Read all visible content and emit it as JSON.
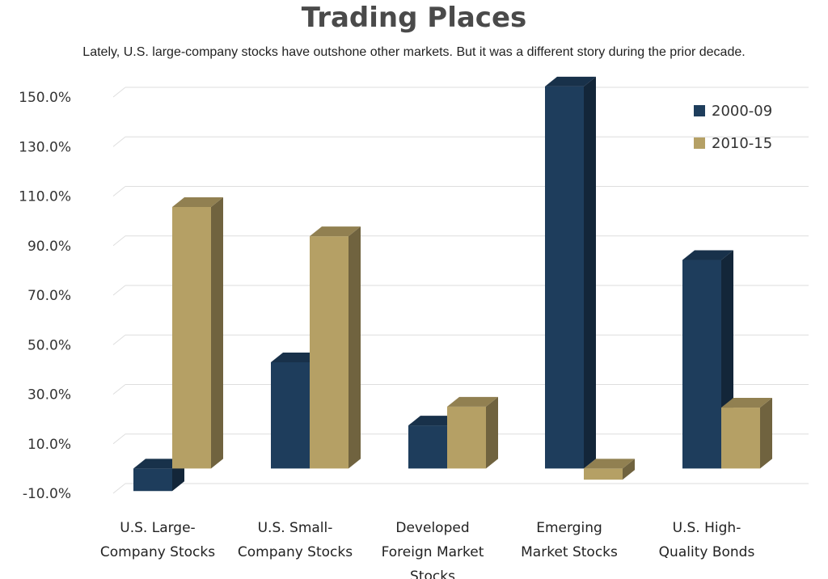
{
  "chart_data": {
    "type": "bar",
    "title": "Trading Places",
    "subtitle": "Lately, U.S. large-company stocks have outshone other markets. But it was a different story during the prior decade.",
    "categories": [
      [
        "U.S. Large-",
        "Company Stocks"
      ],
      [
        "U.S. Small-",
        "Company Stocks"
      ],
      [
        "Developed",
        "Foreign Market",
        "Stocks"
      ],
      [
        "Emerging",
        "Market Stocks"
      ],
      [
        "U.S. High-",
        "Quality Bonds"
      ]
    ],
    "series": [
      {
        "name": "2000-09",
        "color": "#1e3d5c",
        "values": [
          -9.1,
          42.9,
          17.4,
          154.3,
          84.2
        ]
      },
      {
        "name": "2010-15",
        "color": "#b5a065",
        "values": [
          105.6,
          93.8,
          25.0,
          -4.5,
          24.6
        ]
      }
    ],
    "yticks": [
      "150.0%",
      "130.0%",
      "110.0%",
      "90.0%",
      "70.0%",
      "50.0%",
      "30.0%",
      "10.0%",
      "-10.0%"
    ],
    "ylim": [
      -10,
      150
    ],
    "grid": true,
    "legend_position": "top-right"
  }
}
